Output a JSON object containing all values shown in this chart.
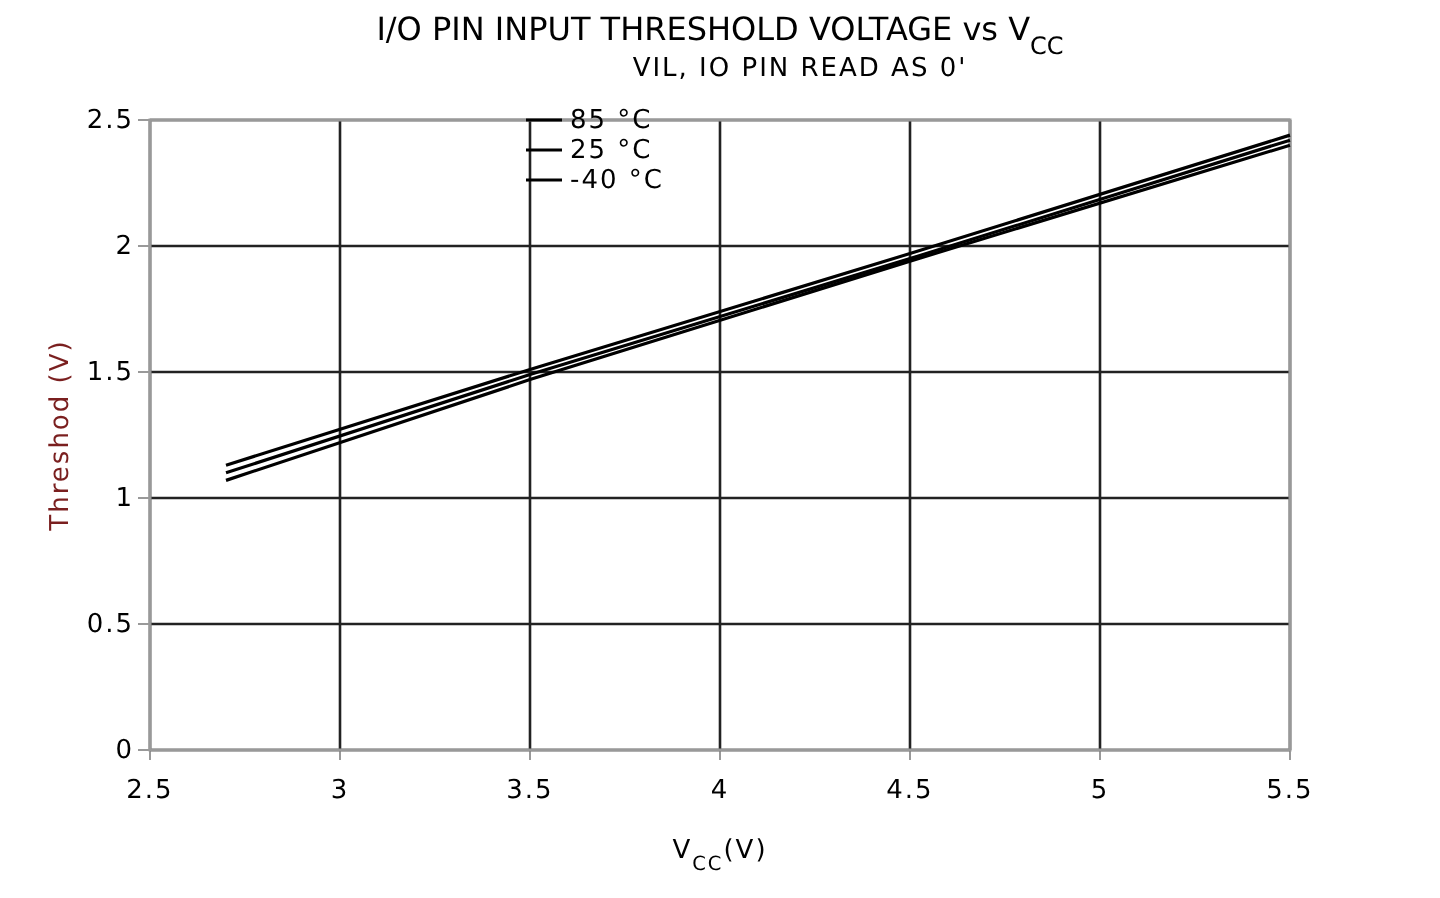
{
  "chart_data": {
    "type": "line",
    "title": "I/O PIN INPUT THRESHOLD VOLTAGE vs V$_{CC}$",
    "subtitle": "VIL, IO PIN READ AS 0'",
    "xlabel": "V$_{CC}$(V)",
    "ylabel": "Threshod (V)",
    "x": [
      2.7,
      3.5,
      4.5,
      5.5
    ],
    "series": [
      {
        "name": "85 °C",
        "color": "#000000",
        "values": [
          1.13,
          1.51,
          1.97,
          2.44
        ]
      },
      {
        "name": "25 °C",
        "color": "#000000",
        "values": [
          1.1,
          1.49,
          1.95,
          2.42
        ]
      },
      {
        "name": "-40 °C",
        "color": "#000000",
        "values": [
          1.07,
          1.47,
          1.94,
          2.4
        ]
      }
    ],
    "xlim": [
      2.5,
      5.5
    ],
    "xticks": [
      2.5,
      3,
      3.5,
      4,
      4.5,
      5,
      5.5
    ],
    "ylim": [
      0,
      2.5
    ],
    "yticks": [
      0,
      0.5,
      1,
      1.5,
      2,
      2.5
    ],
    "grid": true,
    "legend": "top",
    "marker": "none",
    "line_style": "solid"
  }
}
